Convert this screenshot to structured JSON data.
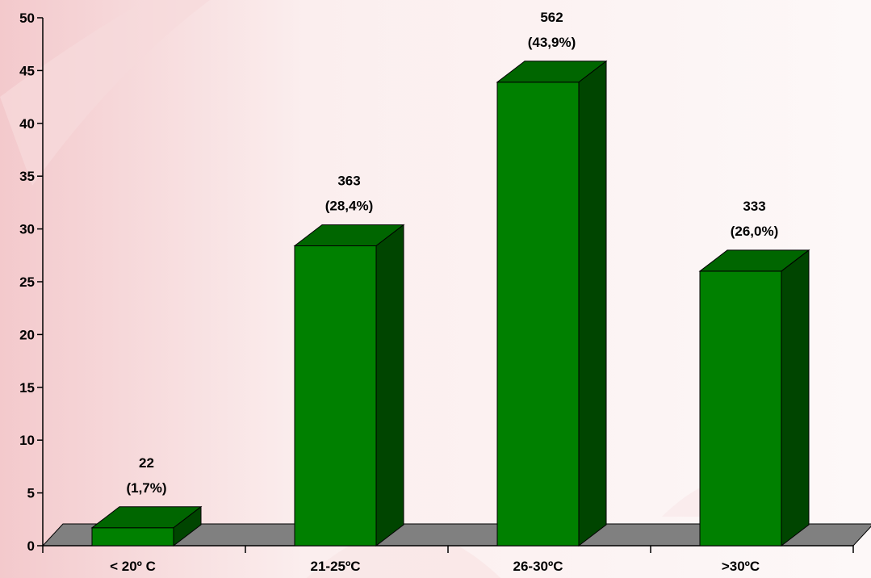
{
  "colors": {
    "bar_front": "#008000",
    "bar_top": "#006600",
    "bar_side": "#004500",
    "floor": "#808080",
    "background": "#fbf3f3"
  },
  "chart_data": {
    "type": "bar",
    "title": "",
    "xlabel": "",
    "ylabel": "",
    "ylim": [
      0,
      50
    ],
    "yticks": [
      0,
      5,
      10,
      15,
      20,
      25,
      30,
      35,
      40,
      45,
      50
    ],
    "categories": [
      "< 20º C",
      "21-25ºC",
      "26-30ºC",
      ">30ºC"
    ],
    "values": [
      1.7,
      28.4,
      43.9,
      26.0
    ],
    "data_labels": [
      {
        "count": "22",
        "percent": "(1,7%)"
      },
      {
        "count": "363",
        "percent": "(28,4%)"
      },
      {
        "count": "562",
        "percent": "(43,9%)"
      },
      {
        "count": "333",
        "percent": "(26,0%)"
      }
    ],
    "style": "3d-column",
    "grid": false,
    "legend": "none"
  }
}
